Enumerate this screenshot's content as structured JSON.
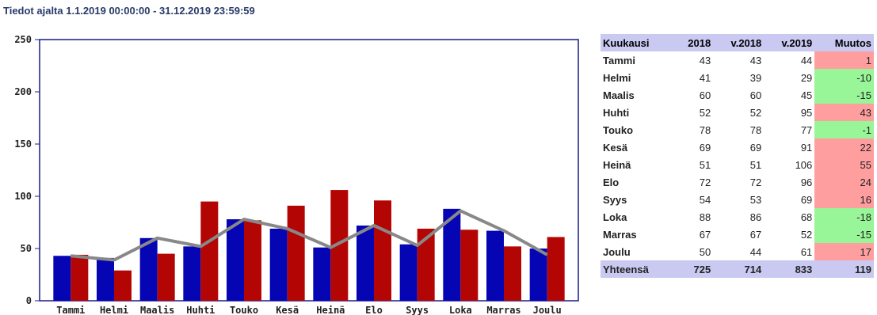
{
  "header": {
    "title": "Tiedot ajalta 1.1.2019 00:00:00 - 31.12.2019 23:59:59"
  },
  "colors": {
    "blue": "#0505b4",
    "red": "#b40505",
    "line": "#888888",
    "header_bg": "#c9c9f2",
    "pos": "#ff9e9e",
    "neg": "#98f598"
  },
  "chart_data": {
    "type": "bar",
    "categories": [
      "Tammi",
      "Helmi",
      "Maalis",
      "Huhti",
      "Touko",
      "Kesä",
      "Heinä",
      "Elo",
      "Syys",
      "Loka",
      "Marras",
      "Joulu"
    ],
    "series": [
      {
        "values": [
          43,
          41,
          60,
          52,
          78,
          69,
          51,
          72,
          54,
          88,
          67,
          50
        ],
        "color": "#0505b4",
        "kind": "bar"
      },
      {
        "values": [
          44,
          29,
          45,
          95,
          77,
          91,
          106,
          96,
          69,
          68,
          52,
          61
        ],
        "color": "#b40505",
        "kind": "bar"
      },
      {
        "values": [
          43,
          39,
          60,
          52,
          78,
          69,
          51,
          72,
          53,
          86,
          67,
          44
        ],
        "color": "#888888",
        "kind": "line"
      }
    ],
    "yticks": [
      "0",
      "50",
      "100",
      "150",
      "200",
      "250"
    ],
    "ylim": [
      0,
      250
    ]
  },
  "table": {
    "headers": [
      "Kuukausi",
      "2018",
      "v.2018",
      "v.2019",
      "Muutos"
    ],
    "rows": [
      [
        "Tammi",
        "43",
        "43",
        "44",
        "1"
      ],
      [
        "Helmi",
        "41",
        "39",
        "29",
        "-10"
      ],
      [
        "Maalis",
        "60",
        "60",
        "45",
        "-15"
      ],
      [
        "Huhti",
        "52",
        "52",
        "95",
        "43"
      ],
      [
        "Touko",
        "78",
        "78",
        "77",
        "-1"
      ],
      [
        "Kesä",
        "69",
        "69",
        "91",
        "22"
      ],
      [
        "Heinä",
        "51",
        "51",
        "106",
        "55"
      ],
      [
        "Elo",
        "72",
        "72",
        "96",
        "24"
      ],
      [
        "Syys",
        "54",
        "53",
        "69",
        "16"
      ],
      [
        "Loka",
        "88",
        "86",
        "68",
        "-18"
      ],
      [
        "Marras",
        "67",
        "67",
        "52",
        "-15"
      ],
      [
        "Joulu",
        "50",
        "44",
        "61",
        "17"
      ]
    ],
    "total": [
      "Yhteensä",
      "725",
      "714",
      "833",
      "119"
    ]
  }
}
